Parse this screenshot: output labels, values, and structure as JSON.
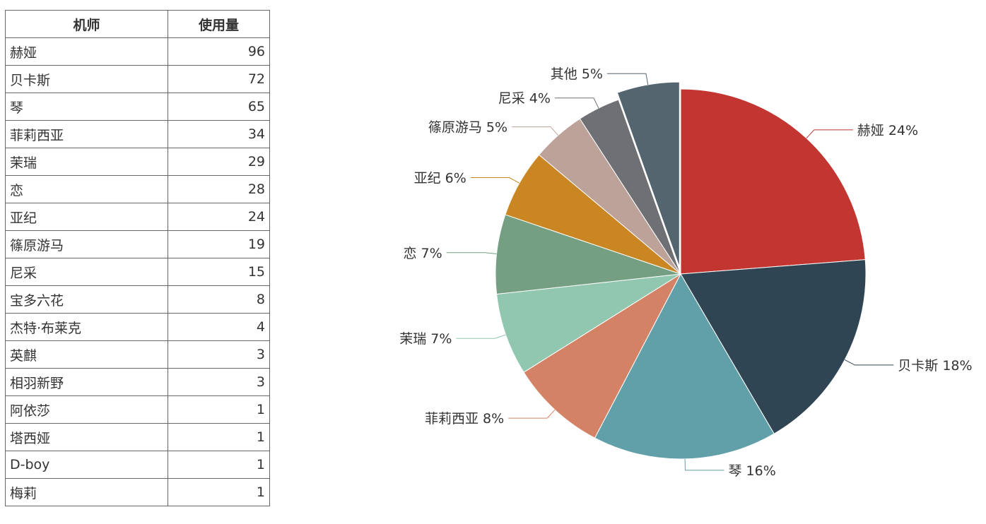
{
  "table": {
    "headers": [
      "机师",
      "使用量"
    ],
    "rows": [
      [
        "赫娅",
        96
      ],
      [
        "贝卡斯",
        72
      ],
      [
        "琴",
        65
      ],
      [
        "菲莉西亚",
        34
      ],
      [
        "茉瑞",
        29
      ],
      [
        "恋",
        28
      ],
      [
        "亚纪",
        24
      ],
      [
        "篠原游马",
        19
      ],
      [
        "尼采",
        15
      ],
      [
        "宝多六花",
        8
      ],
      [
        "杰特·布莱克",
        4
      ],
      [
        "英麒",
        3
      ],
      [
        "相羽新野",
        3
      ],
      [
        "阿依莎",
        1
      ],
      [
        "塔西娅",
        1
      ],
      [
        "D-boy",
        1
      ],
      [
        "梅莉",
        1
      ]
    ]
  },
  "chart_data": {
    "type": "pie",
    "slices": [
      {
        "name": "赫娅",
        "value": 96,
        "percent_label": "赫娅 24%",
        "color": "#c23531"
      },
      {
        "name": "贝卡斯",
        "value": 72,
        "percent_label": "贝卡斯 18%",
        "color": "#2f4554"
      },
      {
        "name": "琴",
        "value": 65,
        "percent_label": "琴 16%",
        "color": "#61a0a8"
      },
      {
        "name": "菲莉西亚",
        "value": 34,
        "percent_label": "菲莉西亚 8%",
        "color": "#d48265"
      },
      {
        "name": "茉瑞",
        "value": 29,
        "percent_label": "茉瑞 7%",
        "color": "#91c7ae"
      },
      {
        "name": "恋",
        "value": 28,
        "percent_label": "恋 7%",
        "color": "#749f83"
      },
      {
        "name": "亚纪",
        "value": 24,
        "percent_label": "亚纪 6%",
        "color": "#ca8622"
      },
      {
        "name": "篠原游马",
        "value": 19,
        "percent_label": "篠原游马 5%",
        "color": "#bda29a"
      },
      {
        "name": "尼采",
        "value": 15,
        "percent_label": "尼采 4%",
        "color": "#6e7074"
      },
      {
        "name": "其他",
        "value": 22,
        "percent_label": "其他 5%",
        "color": "#546570",
        "exploded": true
      }
    ]
  }
}
